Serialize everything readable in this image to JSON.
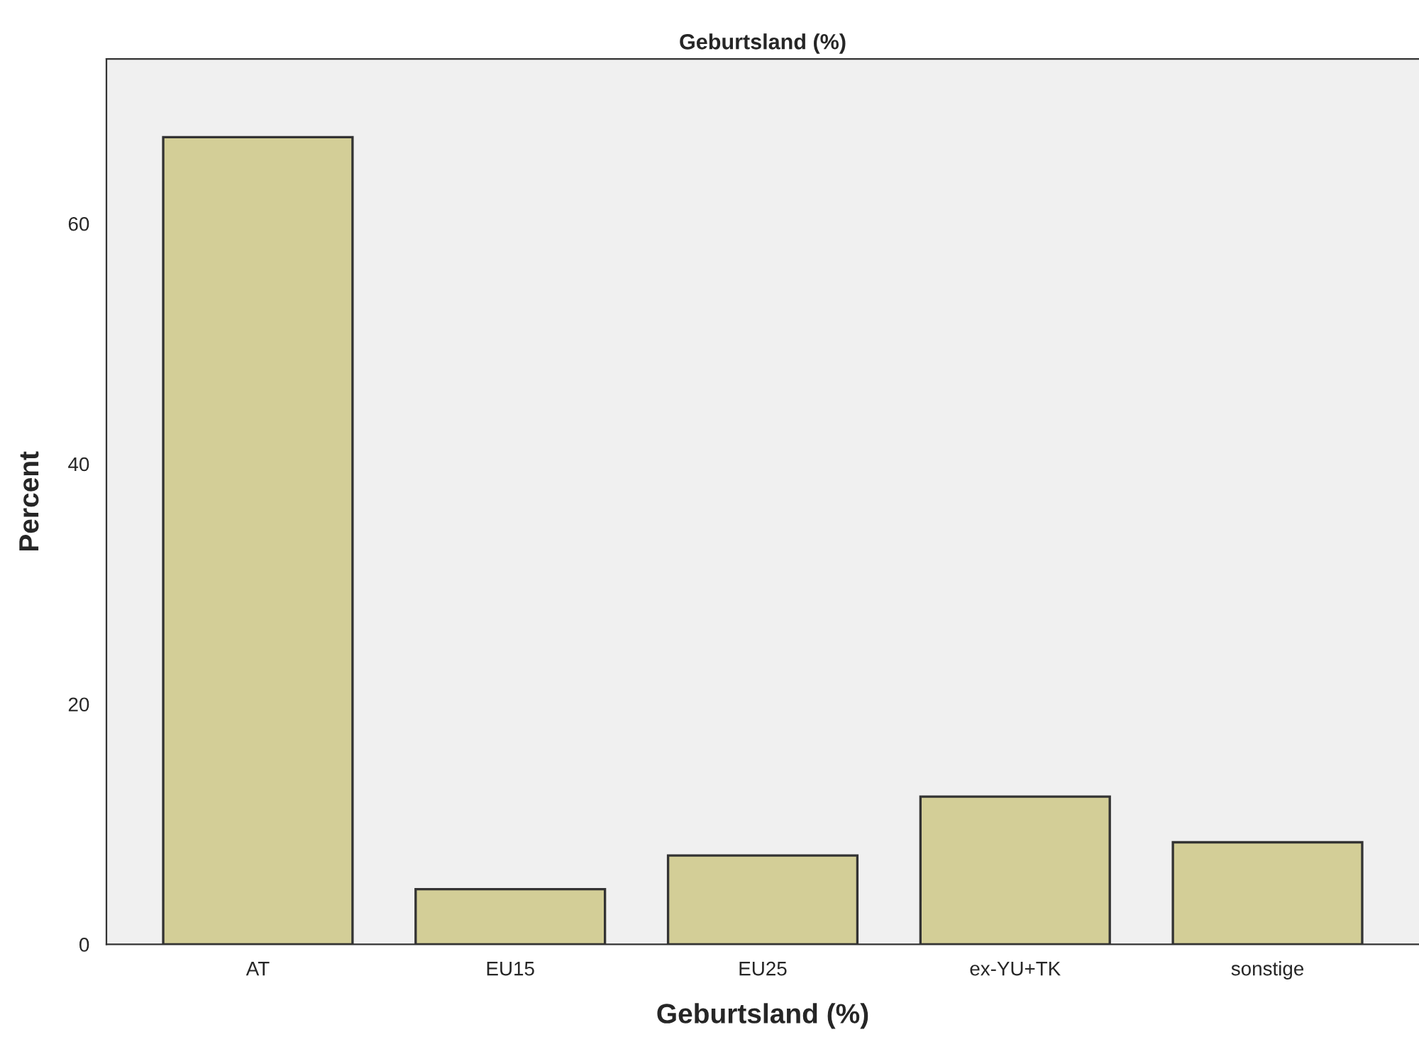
{
  "chart_data": {
    "type": "bar",
    "title": "Geburtsland (%)",
    "xlabel": "Geburtsland (%)",
    "ylabel": "Percent",
    "categories": [
      "AT",
      "EU15",
      "EU25",
      "ex-YU+TK",
      "sonstige"
    ],
    "values": [
      67.2,
      4.6,
      7.4,
      12.3,
      8.5
    ],
    "color": "#d3ce97",
    "ylim": [
      0,
      73.7
    ],
    "yticks": [
      0,
      20,
      40,
      60
    ],
    "grid": false
  }
}
